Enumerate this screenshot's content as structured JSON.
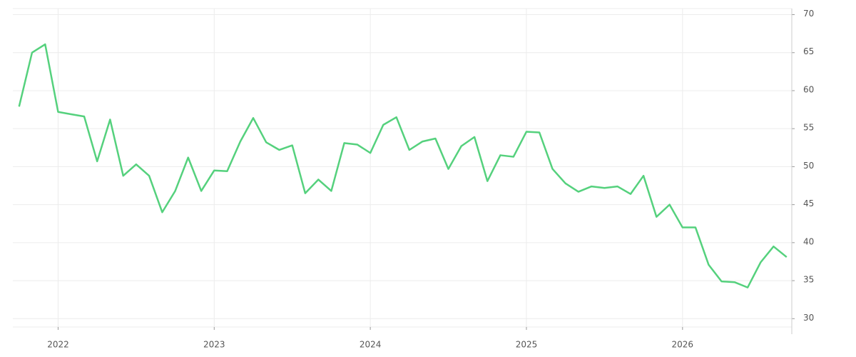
{
  "chart_data": {
    "type": "line",
    "color": "#55d17d",
    "grid": true,
    "x": [
      2021.75,
      2021.833,
      2021.917,
      2022,
      2022.083,
      2022.167,
      2022.25,
      2022.333,
      2022.417,
      2022.5,
      2022.583,
      2022.667,
      2022.75,
      2022.833,
      2022.917,
      2023,
      2023.083,
      2023.167,
      2023.25,
      2023.333,
      2023.417,
      2023.5,
      2023.583,
      2023.667,
      2023.75,
      2023.833,
      2023.917,
      2024,
      2024.083,
      2024.167,
      2024.25,
      2024.333,
      2024.417,
      2024.5,
      2024.583,
      2024.667,
      2024.75,
      2024.833,
      2024.917,
      2025,
      2025.083,
      2025.167,
      2025.25,
      2025.333,
      2025.417,
      2025.5,
      2025.583,
      2025.667,
      2025.75,
      2025.833,
      2025.917,
      2026,
      2026.083,
      2026.167,
      2026.25,
      2026.333,
      2026.417,
      2026.5,
      2026.583,
      2026.667
    ],
    "values": [
      57.9,
      65.0,
      66.1,
      57.2,
      56.9,
      56.6,
      50.7,
      56.2,
      48.8,
      50.3,
      48.8,
      44.0,
      46.8,
      51.2,
      46.8,
      49.5,
      49.4,
      53.3,
      56.4,
      53.2,
      52.2,
      52.8,
      46.5,
      48.3,
      46.8,
      53.1,
      52.9,
      51.8,
      55.5,
      56.5,
      52.2,
      53.3,
      53.7,
      49.7,
      52.7,
      53.9,
      48.1,
      51.5,
      51.3,
      54.6,
      54.5,
      49.7,
      47.8,
      46.7,
      47.4,
      47.2,
      47.4,
      46.4,
      48.8,
      43.4,
      45.0,
      42.0,
      42.0,
      37.1,
      34.9,
      34.8,
      34.1,
      37.4,
      39.5,
      38.1
    ],
    "xlim": [
      2021.71,
      2026.7
    ],
    "xticks": [
      2022,
      2023,
      2024,
      2025,
      2026
    ],
    "ylim": [
      28.9,
      70.8
    ],
    "yticks": [
      30,
      35,
      40,
      45,
      50,
      55,
      60,
      65,
      70
    ]
  }
}
